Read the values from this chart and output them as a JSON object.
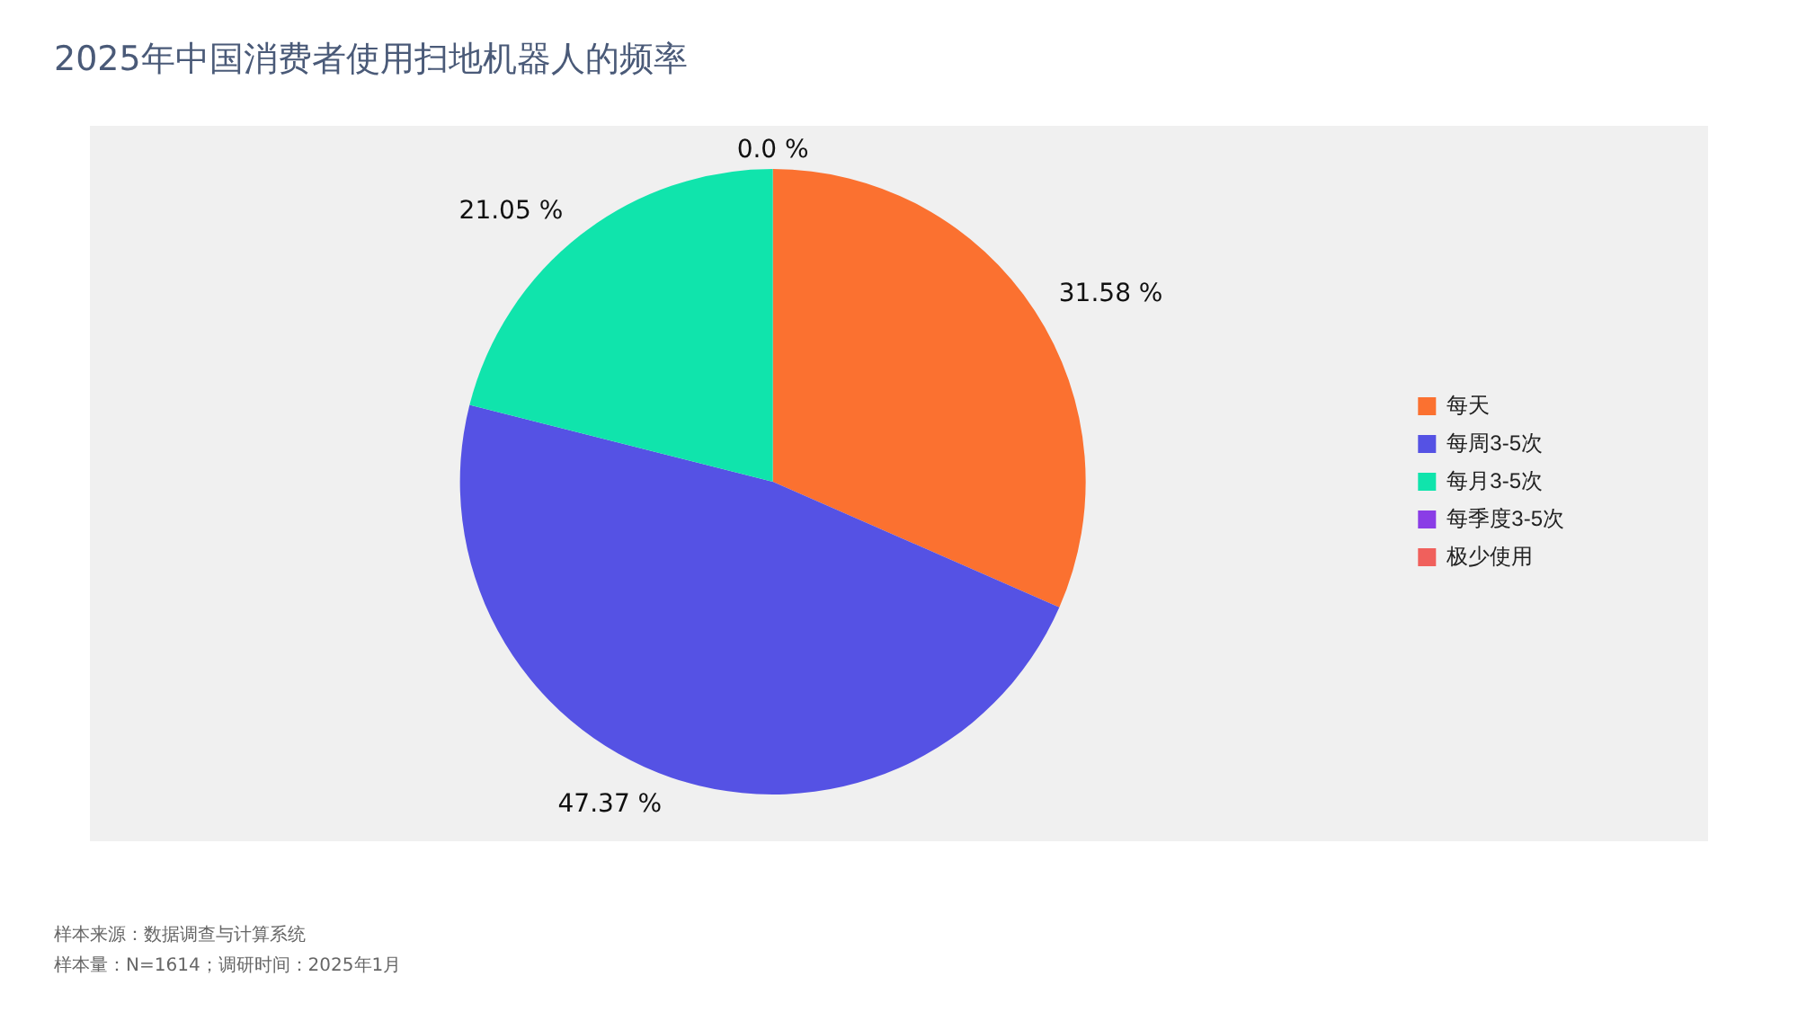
{
  "chart_data": {
    "type": "pie",
    "title": "2025年中国消费者使用扫地机器人的频率",
    "categories": [
      "每天",
      "每周3-5次",
      "每月3-5次",
      "每季度3-5次",
      "极少使用"
    ],
    "values": [
      31.58,
      47.37,
      21.05,
      0.0,
      0.0
    ],
    "colors": [
      "#fb7130",
      "#5552e4",
      "#10e4ac",
      "#8a3de6",
      "#f0605c"
    ],
    "value_labels": [
      "31.58 %",
      "47.37 %",
      "21.05 %",
      "0.0 %",
      null
    ],
    "legend": "right",
    "annotations": [
      "样本来源：数据调查与计算系统",
      "样本量：N=1614；调研时间：2025年1月"
    ]
  }
}
